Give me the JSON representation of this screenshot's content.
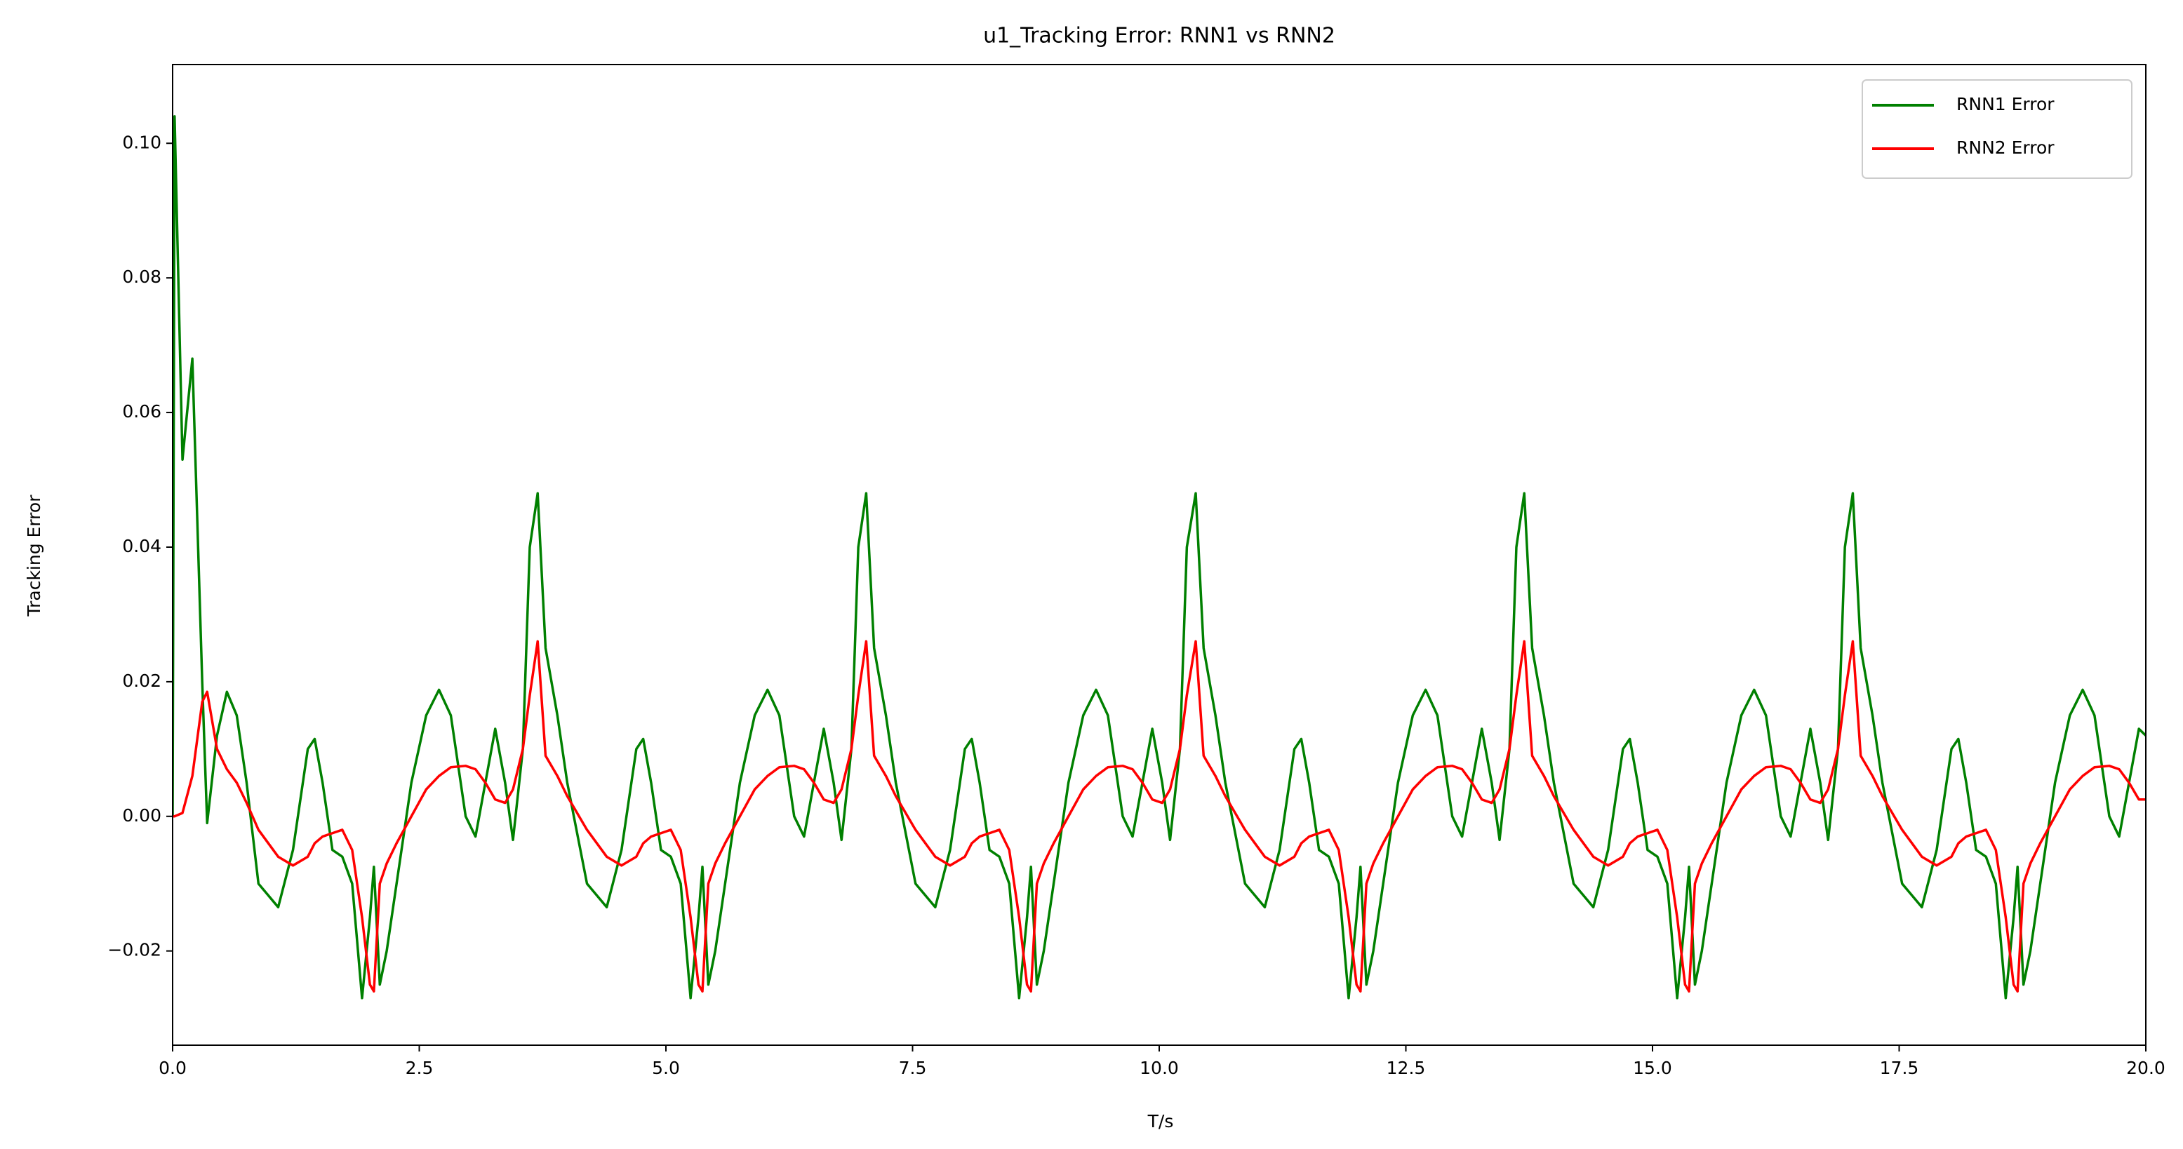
{
  "chart_data": {
    "type": "line",
    "title": "u1_Tracking Error: RNN1 vs RNN2",
    "xlabel": "T/s",
    "ylabel": "Tracking Error",
    "xlim": [
      0,
      20
    ],
    "ylim": [
      -0.034,
      0.1117
    ],
    "xticks": [
      {
        "value": 0,
        "label": "0.0"
      },
      {
        "value": 2.5,
        "label": "2.5"
      },
      {
        "value": 5,
        "label": "5.0"
      },
      {
        "value": 7.5,
        "label": "7.5"
      },
      {
        "value": 10,
        "label": "10.0"
      },
      {
        "value": 12.5,
        "label": "12.5"
      },
      {
        "value": 15,
        "label": "15.0"
      },
      {
        "value": 17.5,
        "label": "17.5"
      },
      {
        "value": 20,
        "label": "20.0"
      }
    ],
    "yticks": [
      {
        "value": -0.02,
        "label": "−0.02"
      },
      {
        "value": 0,
        "label": "0.00"
      },
      {
        "value": 0.02,
        "label": "0.02"
      },
      {
        "value": 0.04,
        "label": "0.04"
      },
      {
        "value": 0.06,
        "label": "0.06"
      },
      {
        "value": 0.08,
        "label": "0.08"
      },
      {
        "value": 0.1,
        "label": "0.10"
      }
    ],
    "legend": "upper right",
    "x": [
      0,
      0.02,
      0.1,
      0.2,
      0.3,
      0.35,
      0.45,
      0.55,
      0.65,
      0.75,
      0.87,
      1.07,
      1.22,
      1.37,
      1.44,
      1.52,
      1.62,
      1.72,
      1.82,
      1.92,
      2.0,
      2.04,
      2.1,
      2.17,
      2.27,
      2.42,
      2.57,
      2.7,
      2.82,
      2.97,
      3.07,
      3.17,
      3.27,
      3.37,
      3.45,
      3.55,
      3.62,
      3.7,
      3.78,
      3.9,
      4.0,
      4.2,
      4.4,
      4.55,
      4.7,
      4.77,
      4.85,
      4.95,
      5.05,
      5.15,
      5.25,
      5.33,
      5.37,
      5.43,
      5.5,
      5.6,
      5.75,
      5.9,
      6.03,
      6.15,
      6.3,
      6.4,
      6.5,
      6.6,
      6.7,
      6.78,
      6.88,
      6.95,
      7.03,
      7.11,
      7.23,
      7.33,
      7.53,
      7.73,
      7.88,
      8.03,
      8.1,
      8.18,
      8.28,
      8.38,
      8.48,
      8.58,
      8.66,
      8.7,
      8.76,
      8.83,
      8.93,
      9.08,
      9.23,
      9.36,
      9.48,
      9.63,
      9.73,
      9.83,
      9.93,
      10.03,
      10.11,
      10.21,
      10.28,
      10.37,
      10.45,
      10.57,
      10.67,
      10.87,
      11.07,
      11.22,
      11.37,
      11.44,
      11.52,
      11.62,
      11.72,
      11.82,
      11.92,
      12.0,
      12.04,
      12.1,
      12.17,
      12.27,
      12.42,
      12.57,
      12.7,
      12.82,
      12.97,
      13.07,
      13.17,
      13.27,
      13.37,
      13.45,
      13.55,
      13.62,
      13.7,
      13.78,
      13.9,
      14.0,
      14.2,
      14.4,
      14.55,
      14.7,
      14.77,
      14.85,
      14.95,
      15.05,
      15.15,
      15.25,
      15.33,
      15.37,
      15.43,
      15.5,
      15.6,
      15.75,
      15.9,
      16.03,
      16.15,
      16.3,
      16.4,
      16.5,
      16.6,
      16.7,
      16.78,
      16.88,
      16.95,
      17.03,
      17.11,
      17.23,
      17.33,
      17.53,
      17.73,
      17.88,
      18.03,
      18.1,
      18.18,
      18.28,
      18.38,
      18.48,
      18.58,
      18.66,
      18.7,
      18.76,
      18.83,
      18.93,
      19.08,
      19.23,
      19.36,
      19.48,
      19.63,
      19.73,
      19.83,
      19.93,
      20.0
    ],
    "series": [
      {
        "name": "RNN1 Error",
        "color": "#008000",
        "values": [
          0.0,
          0.104,
          0.053,
          0.068,
          0.02,
          -0.001,
          0.012,
          0.0185,
          0.015,
          0.005,
          -0.01,
          -0.0135,
          -0.005,
          0.01,
          0.0115,
          0.005,
          -0.005,
          -0.006,
          -0.01,
          -0.027,
          -0.015,
          -0.0075,
          -0.025,
          -0.02,
          -0.01,
          0.005,
          0.015,
          0.0188,
          0.015,
          0.0,
          -0.003,
          0.005,
          0.013,
          0.005,
          -0.0035,
          0.01,
          0.04,
          0.048,
          0.025,
          0.015,
          0.005,
          -0.01,
          -0.0135,
          -0.005,
          0.01,
          0.0115,
          0.005,
          -0.005,
          -0.006,
          -0.01,
          -0.027,
          -0.015,
          -0.0075,
          -0.025,
          -0.02,
          -0.01,
          0.005,
          0.015,
          0.0188,
          0.015,
          0.0,
          -0.003,
          0.005,
          0.013,
          0.005,
          -0.0035,
          0.01,
          0.04,
          0.048,
          0.025,
          0.015,
          0.005,
          -0.01,
          -0.0135,
          -0.005,
          0.01,
          0.0115,
          0.005,
          -0.005,
          -0.006,
          -0.01,
          -0.027,
          -0.015,
          -0.0075,
          -0.025,
          -0.02,
          -0.01,
          0.005,
          0.015,
          0.0188,
          0.015,
          0.0,
          -0.003,
          0.005,
          0.013,
          0.005,
          -0.0035,
          0.01,
          0.04,
          0.048,
          0.025,
          0.015,
          0.005,
          -0.01,
          -0.0135,
          -0.005,
          0.01,
          0.0115,
          0.005,
          -0.005,
          -0.006,
          -0.01,
          -0.027,
          -0.015,
          -0.0075,
          -0.025,
          -0.02,
          -0.01,
          0.005,
          0.015,
          0.0188,
          0.015,
          0.0,
          -0.003,
          0.005,
          0.013,
          0.005,
          -0.0035,
          0.01,
          0.04,
          0.048,
          0.025,
          0.015,
          0.005,
          -0.01,
          -0.0135,
          -0.005,
          0.01,
          0.0115,
          0.005,
          -0.005,
          -0.006,
          -0.01,
          -0.027,
          -0.015,
          -0.0075,
          -0.025,
          -0.02,
          -0.01,
          0.005,
          0.015,
          0.0188,
          0.015,
          0.0,
          -0.003,
          0.005,
          0.013,
          0.005,
          -0.0035,
          0.01,
          0.04,
          0.048,
          0.025,
          0.015,
          0.005,
          -0.01,
          -0.0135,
          -0.005,
          0.01,
          0.0115,
          0.005,
          -0.005,
          -0.006,
          -0.01,
          -0.027,
          -0.015,
          -0.0075,
          -0.025,
          -0.02,
          -0.01,
          0.005,
          0.015,
          0.0188,
          0.015,
          0.0,
          -0.003,
          0.005,
          0.013,
          0.012
        ]
      },
      {
        "name": "RNN2 Error",
        "color": "#ff0000",
        "values": [
          0,
          0,
          0.0005,
          0.006,
          0.017,
          0.0185,
          0.01,
          0.007,
          0.005,
          0.002,
          -0.002,
          -0.006,
          -0.0073,
          -0.006,
          -0.004,
          -0.003,
          -0.0025,
          -0.002,
          -0.005,
          -0.015,
          -0.025,
          -0.026,
          -0.01,
          -0.007,
          -0.004,
          0.0,
          0.004,
          0.006,
          0.0073,
          0.0075,
          0.007,
          0.005,
          0.0025,
          0.002,
          0.004,
          0.01,
          0.018,
          0.026,
          0.009,
          0.006,
          0.003,
          -0.002,
          -0.006,
          -0.0073,
          -0.006,
          -0.004,
          -0.003,
          -0.0025,
          -0.002,
          -0.005,
          -0.015,
          -0.025,
          -0.026,
          -0.01,
          -0.007,
          -0.004,
          0.0,
          0.004,
          0.006,
          0.0073,
          0.0075,
          0.007,
          0.005,
          0.0025,
          0.002,
          0.004,
          0.01,
          0.018,
          0.026,
          0.009,
          0.006,
          0.003,
          -0.002,
          -0.006,
          -0.0073,
          -0.006,
          -0.004,
          -0.003,
          -0.0025,
          -0.002,
          -0.005,
          -0.015,
          -0.025,
          -0.026,
          -0.01,
          -0.007,
          -0.004,
          0.0,
          0.004,
          0.006,
          0.0073,
          0.0075,
          0.007,
          0.005,
          0.0025,
          0.002,
          0.004,
          0.01,
          0.018,
          0.026,
          0.009,
          0.006,
          0.003,
          -0.002,
          -0.006,
          -0.0073,
          -0.006,
          -0.004,
          -0.003,
          -0.0025,
          -0.002,
          -0.005,
          -0.015,
          -0.025,
          -0.026,
          -0.01,
          -0.007,
          -0.004,
          0.0,
          0.004,
          0.006,
          0.0073,
          0.0075,
          0.007,
          0.005,
          0.0025,
          0.002,
          0.004,
          0.01,
          0.018,
          0.026,
          0.009,
          0.006,
          0.003,
          -0.002,
          -0.006,
          -0.0073,
          -0.006,
          -0.004,
          -0.003,
          -0.0025,
          -0.002,
          -0.005,
          -0.015,
          -0.025,
          -0.026,
          -0.01,
          -0.007,
          -0.004,
          0.0,
          0.004,
          0.006,
          0.0073,
          0.0075,
          0.007,
          0.005,
          0.0025,
          0.002,
          0.004,
          0.01,
          0.018,
          0.026,
          0.009,
          0.006,
          0.003,
          -0.002,
          -0.006,
          -0.0073,
          -0.006,
          -0.004,
          -0.003,
          -0.0025,
          -0.002,
          -0.005,
          -0.015,
          -0.025,
          -0.026,
          -0.01,
          -0.007,
          -0.004,
          0.0,
          0.004,
          0.006,
          0.0073,
          0.0075,
          0.007,
          0.005,
          0.0025,
          0.0025
        ]
      }
    ]
  }
}
